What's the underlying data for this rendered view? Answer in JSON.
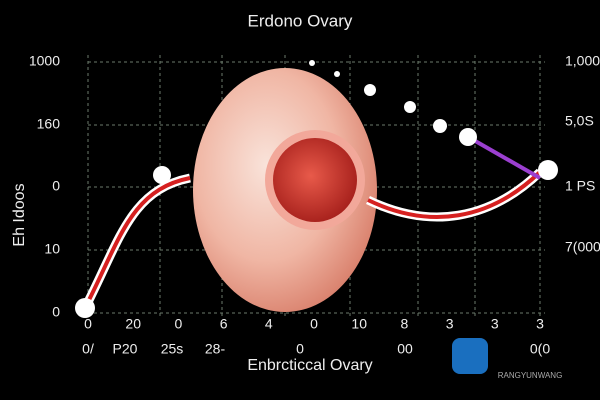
{
  "header": {
    "title": "Erdono Ovary"
  },
  "left_labels": [
    "1000",
    "160",
    "0",
    "10",
    "0"
  ],
  "left_axis_label": "Eh Idoos",
  "right_labels": [
    "1,000",
    "5,0S",
    "1 PS",
    "7(000"
  ],
  "bottom_row_1": [
    "0",
    "20",
    "0",
    "6",
    "4",
    "0",
    "10",
    "8",
    "3",
    "3",
    "3"
  ],
  "bottom_row_2": [
    "0/",
    "P20",
    "25s",
    "28-",
    "0",
    "00",
    "0(0"
  ],
  "bottom_axis_label": "Enbrcticcal Ovary",
  "watermark": "RANGYUNWANG"
}
